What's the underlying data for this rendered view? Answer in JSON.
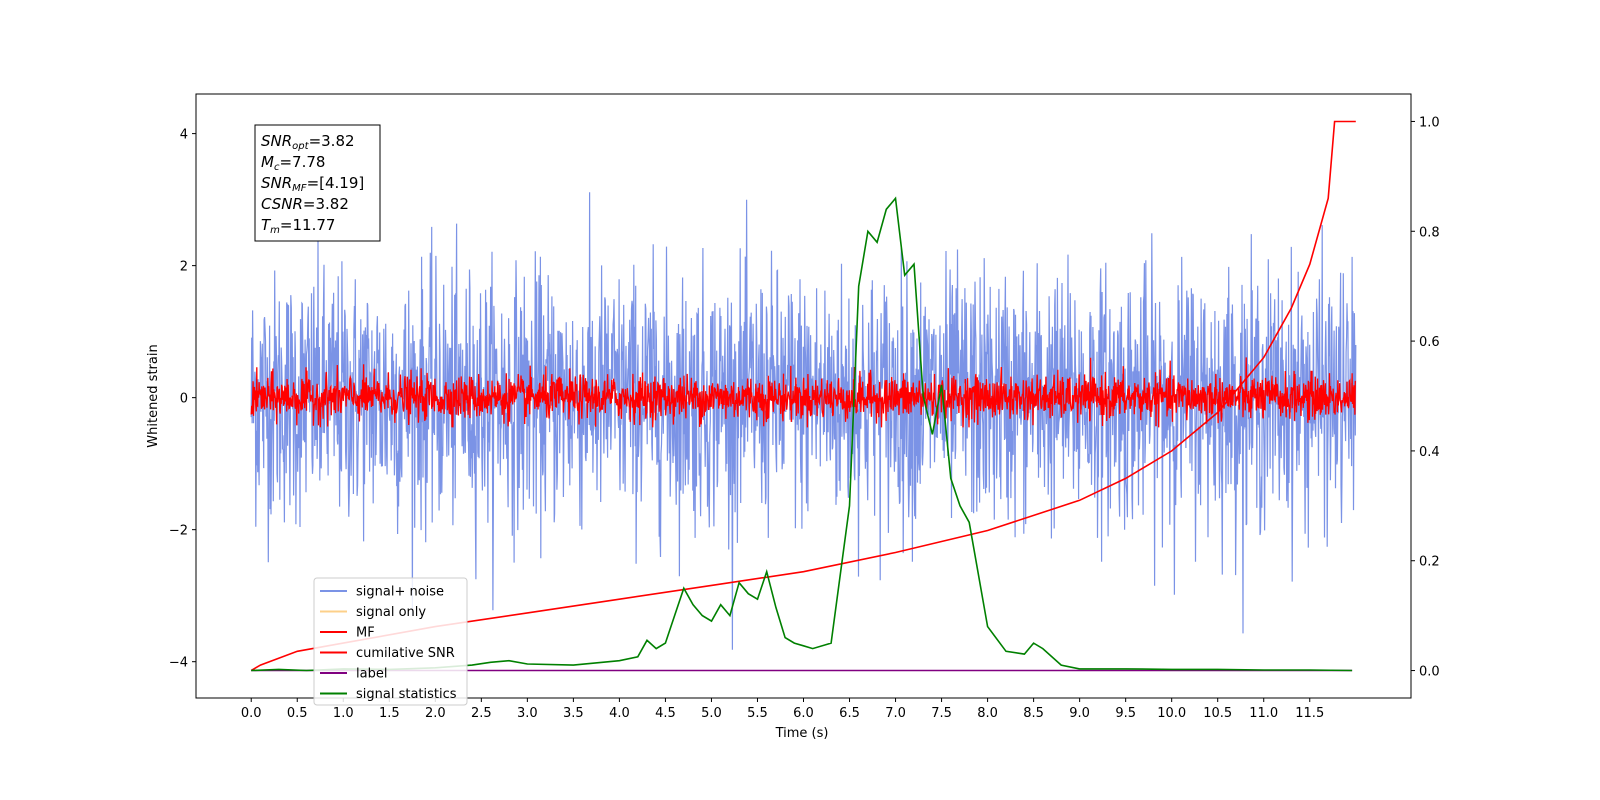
{
  "chart_data": {
    "type": "line",
    "title": "",
    "xlabel": "Time (s)",
    "ylabel": "Whitened strain",
    "y2label": "",
    "xlim": [
      -0.6,
      12.6
    ],
    "ylim": [
      -4.55,
      4.6
    ],
    "y2lim": [
      -0.05,
      1.05
    ],
    "xticks": [
      "0.0",
      "0.5",
      "1.0",
      "1.5",
      "2.0",
      "2.5",
      "3.0",
      "3.5",
      "4.0",
      "4.5",
      "5.0",
      "5.5",
      "6.0",
      "6.5",
      "7.0",
      "7.5",
      "8.0",
      "8.5",
      "9.0",
      "9.5",
      "10.0",
      "10.5",
      "11.0",
      "11.5"
    ],
    "yticks": [
      "−4",
      "−2",
      "0",
      "2",
      "4"
    ],
    "y2ticks": [
      "0.0",
      "0.2",
      "0.4",
      "0.6",
      "0.8",
      "1.0"
    ],
    "grid": false,
    "legend_position": "lower-left",
    "info_box": {
      "lines": [
        {
          "main": "SNR",
          "sub": "opt",
          "value": "=3.82"
        },
        {
          "main": "M",
          "sub": "c",
          "value": "=7.78"
        },
        {
          "main": "SNR",
          "sub": "MF",
          "value": "=[4.19]"
        },
        {
          "main": "CSNR",
          "sub": "",
          "value": "=3.82"
        },
        {
          "main": "T",
          "sub": "m",
          "value": "=11.77"
        }
      ]
    },
    "series": [
      {
        "name": "signal+ noise",
        "color": "#7b93e6",
        "axis": "left",
        "kind": "noise",
        "x_range": [
          0,
          12.0
        ],
        "std": 0.95,
        "y_range": [
          -4.15,
          4.17
        ]
      },
      {
        "name": "signal only",
        "color": "#fdd08a",
        "axis": "left",
        "kind": "flat",
        "values": []
      },
      {
        "name": "MF",
        "color": "#ff0000",
        "axis": "left",
        "kind": "noise",
        "x_range": [
          0,
          12.0
        ],
        "std": 0.17,
        "y_range": [
          -0.45,
          0.9
        ]
      },
      {
        "name": "cumilative SNR",
        "color": "#ff0000",
        "axis": "right",
        "x": [
          0,
          0.1,
          0.5,
          1.0,
          2.0,
          3.0,
          4.0,
          5.0,
          6.0,
          7.0,
          8.0,
          9.0,
          9.5,
          10.0,
          10.5,
          11.0,
          11.3,
          11.5,
          11.7,
          11.77,
          12.0
        ],
        "values": [
          0.0,
          0.01,
          0.035,
          0.05,
          0.08,
          0.105,
          0.13,
          0.155,
          0.18,
          0.215,
          0.255,
          0.31,
          0.35,
          0.4,
          0.47,
          0.57,
          0.66,
          0.74,
          0.86,
          1.0,
          1.0
        ]
      },
      {
        "name": "label",
        "color": "#800080",
        "axis": "right",
        "x": [
          0,
          11.96
        ],
        "values": [
          0.0,
          0.0
        ]
      },
      {
        "name": "signal statistics",
        "color": "#008000",
        "axis": "right",
        "x": [
          0,
          0.3,
          0.6,
          1.0,
          1.5,
          2.0,
          2.4,
          2.6,
          2.8,
          3.0,
          3.5,
          4.0,
          4.2,
          4.3,
          4.4,
          4.5,
          4.6,
          4.7,
          4.8,
          4.9,
          5.0,
          5.1,
          5.2,
          5.3,
          5.4,
          5.5,
          5.6,
          5.7,
          5.8,
          5.9,
          6.0,
          6.1,
          6.3,
          6.5,
          6.6,
          6.7,
          6.8,
          6.9,
          7.0,
          7.1,
          7.2,
          7.3,
          7.4,
          7.5,
          7.6,
          7.7,
          7.8,
          8.0,
          8.2,
          8.4,
          8.5,
          8.6,
          8.8,
          9.0,
          9.5,
          10.0,
          10.5,
          11.0,
          11.5,
          11.96
        ],
        "values": [
          0.0,
          0.002,
          0.0,
          0.003,
          0.002,
          0.005,
          0.01,
          0.015,
          0.018,
          0.012,
          0.01,
          0.018,
          0.025,
          0.055,
          0.04,
          0.05,
          0.1,
          0.15,
          0.12,
          0.1,
          0.09,
          0.12,
          0.1,
          0.16,
          0.14,
          0.13,
          0.18,
          0.115,
          0.06,
          0.05,
          0.045,
          0.04,
          0.05,
          0.3,
          0.7,
          0.8,
          0.78,
          0.84,
          0.86,
          0.72,
          0.74,
          0.5,
          0.43,
          0.52,
          0.35,
          0.3,
          0.27,
          0.08,
          0.035,
          0.03,
          0.05,
          0.04,
          0.01,
          0.003,
          0.003,
          0.002,
          0.002,
          0.001,
          0.001,
          0.0
        ]
      }
    ]
  }
}
